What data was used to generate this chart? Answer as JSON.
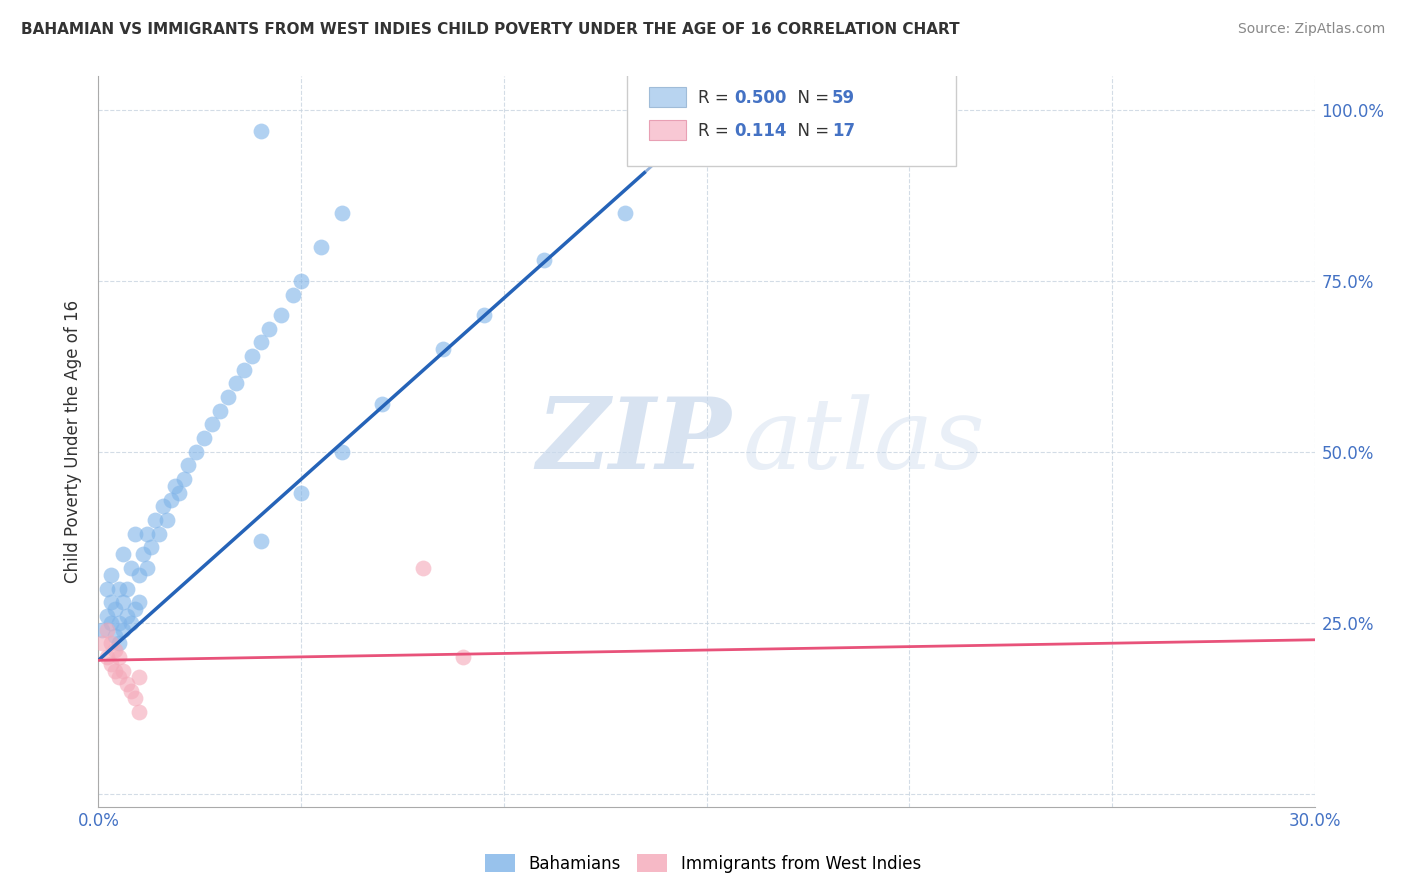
{
  "title": "BAHAMIAN VS IMMIGRANTS FROM WEST INDIES CHILD POVERTY UNDER THE AGE OF 16 CORRELATION CHART",
  "source": "Source: ZipAtlas.com",
  "ylabel": "Child Poverty Under the Age of 16",
  "xlim": [
    0.0,
    0.3
  ],
  "ylim": [
    -0.02,
    1.05
  ],
  "r_bahamian": 0.5,
  "n_bahamian": 59,
  "r_westindies": 0.114,
  "n_westindies": 17,
  "bahamian_color": "#7EB3E8",
  "westindies_color": "#F4A8B8",
  "line_bahamian_color": "#2563B8",
  "line_westindies_color": "#E8527A",
  "legend_box_bahamian": "#B8D4F0",
  "legend_box_westindies": "#F8C8D4",
  "watermark_zip": "ZIP",
  "watermark_atlas": "atlas",
  "bah_line_x0": 0.0,
  "bah_line_y0": 0.195,
  "bah_line_x1": 0.135,
  "bah_line_y1": 0.91,
  "wi_line_x0": 0.0,
  "wi_line_y0": 0.195,
  "wi_line_x1": 0.3,
  "wi_line_y1": 0.225,
  "bah_scatter_x": [
    0.001,
    0.002,
    0.002,
    0.003,
    0.003,
    0.003,
    0.004,
    0.004,
    0.005,
    0.005,
    0.005,
    0.006,
    0.006,
    0.006,
    0.007,
    0.007,
    0.008,
    0.008,
    0.009,
    0.009,
    0.01,
    0.01,
    0.011,
    0.012,
    0.012,
    0.013,
    0.014,
    0.015,
    0.016,
    0.017,
    0.018,
    0.019,
    0.02,
    0.021,
    0.022,
    0.024,
    0.026,
    0.028,
    0.03,
    0.032,
    0.034,
    0.036,
    0.038,
    0.04,
    0.042,
    0.045,
    0.048,
    0.05,
    0.055,
    0.06,
    0.04,
    0.05,
    0.06,
    0.07,
    0.085,
    0.095,
    0.11,
    0.13,
    0.04
  ],
  "bah_scatter_y": [
    0.24,
    0.26,
    0.3,
    0.25,
    0.28,
    0.32,
    0.23,
    0.27,
    0.22,
    0.25,
    0.3,
    0.24,
    0.28,
    0.35,
    0.26,
    0.3,
    0.25,
    0.33,
    0.27,
    0.38,
    0.28,
    0.32,
    0.35,
    0.33,
    0.38,
    0.36,
    0.4,
    0.38,
    0.42,
    0.4,
    0.43,
    0.45,
    0.44,
    0.46,
    0.48,
    0.5,
    0.52,
    0.54,
    0.56,
    0.58,
    0.6,
    0.62,
    0.64,
    0.66,
    0.68,
    0.7,
    0.73,
    0.75,
    0.8,
    0.85,
    0.37,
    0.44,
    0.5,
    0.57,
    0.65,
    0.7,
    0.78,
    0.85,
    0.97
  ],
  "wi_scatter_x": [
    0.001,
    0.002,
    0.002,
    0.003,
    0.003,
    0.004,
    0.004,
    0.005,
    0.005,
    0.006,
    0.007,
    0.008,
    0.009,
    0.01,
    0.01,
    0.08,
    0.09
  ],
  "wi_scatter_y": [
    0.22,
    0.2,
    0.24,
    0.19,
    0.22,
    0.18,
    0.21,
    0.17,
    0.2,
    0.18,
    0.16,
    0.15,
    0.14,
    0.12,
    0.17,
    0.33,
    0.2
  ]
}
